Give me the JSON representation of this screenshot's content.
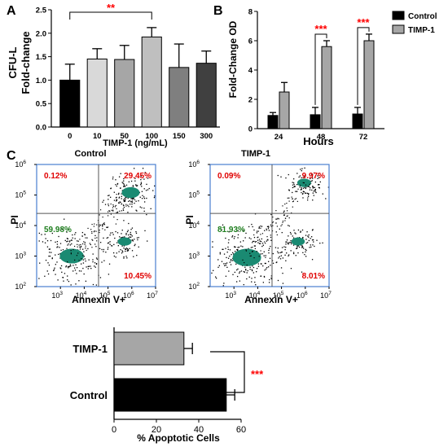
{
  "figure": {
    "panel_letters": [
      "A",
      "B",
      "C"
    ]
  },
  "chart_data": [
    {
      "panel": "A",
      "type": "bar",
      "xlabel": "TIMP-1 (ng/mL)",
      "ylabel_lines": [
        "CFU-L",
        "Fold-change"
      ],
      "categories": [
        "0",
        "10",
        "50",
        "100",
        "150",
        "300"
      ],
      "values": [
        1.0,
        1.45,
        1.44,
        1.92,
        1.27,
        1.36
      ],
      "errors": [
        0.34,
        0.22,
        0.3,
        0.2,
        0.5,
        0.26
      ],
      "colors": [
        "#000000",
        "#d9d9d9",
        "#a6a6a6",
        "#bfbfbf",
        "#7f7f7f",
        "#404040"
      ],
      "ylim": [
        0,
        2.5
      ],
      "yticks": [
        "0.0",
        "0.5",
        "1.0",
        "1.5",
        "2.0",
        "2.5"
      ],
      "annotations": [
        {
          "text": "**",
          "from": "0",
          "to": "100",
          "color": "#ff0000"
        }
      ]
    },
    {
      "panel": "B",
      "type": "bar",
      "xlabel": "Hours",
      "ylabel": "Fold-Change OD",
      "categories": [
        "24",
        "48",
        "72"
      ],
      "ylim": [
        0,
        8
      ],
      "yticks": [
        "0",
        "2",
        "4",
        "6",
        "8"
      ],
      "legend": {
        "position": "top-right"
      },
      "series": [
        {
          "name": "Control",
          "color": "#000000",
          "values": [
            0.9,
            0.95,
            1.0
          ],
          "errors": [
            0.2,
            0.5,
            0.45
          ]
        },
        {
          "name": "TIMP-1",
          "color": "#a6a6a6",
          "values": [
            2.5,
            5.6,
            6.0
          ],
          "errors": [
            0.65,
            0.4,
            0.45
          ]
        }
      ],
      "annotations": [
        {
          "text": "***",
          "category": "48",
          "color": "#ff0000"
        },
        {
          "text": "***",
          "category": "72",
          "color": "#ff0000"
        }
      ]
    },
    {
      "panel": "C-control",
      "type": "scatter",
      "title": "Control",
      "xlabel": "Annexin V+",
      "ylabel": "PI",
      "x_scale": "log",
      "y_scale": "log",
      "xlim": [
        100,
        10000000
      ],
      "ylim": [
        100,
        1000000
      ],
      "gate_x": 40000,
      "gate_y": 25000,
      "quadrants": {
        "upper_left": "0.12%",
        "upper_right": "29.45%",
        "lower_left": "59.98%",
        "lower_right": "10.45%"
      },
      "populations": [
        {
          "x": 3000,
          "y": 1000,
          "level": 0.6
        },
        {
          "x": 900000,
          "y": 120000,
          "level": 0.3
        },
        {
          "x": 500000,
          "y": 3000,
          "level": 0.1
        }
      ]
    },
    {
      "panel": "C-timp1",
      "type": "scatter",
      "title": "TIMP-1",
      "xlabel": "Annexin V+",
      "ylabel": "PI",
      "x_scale": "log",
      "y_scale": "log",
      "xlim": [
        100,
        10000000
      ],
      "ylim": [
        100,
        1000000
      ],
      "gate_x": 40000,
      "gate_y": 25000,
      "quadrants": {
        "upper_left": "0.09%",
        "upper_right": "9.97%",
        "lower_left": "81.93%",
        "lower_right": "8.01%"
      },
      "populations": [
        {
          "x": 3500,
          "y": 900,
          "level": 0.82
        },
        {
          "x": 900000,
          "y": 250000,
          "level": 0.1
        },
        {
          "x": 500000,
          "y": 3000,
          "level": 0.08
        }
      ]
    },
    {
      "panel": "C-bar",
      "type": "bar",
      "orientation": "horizontal",
      "xlabel": "% Apoptotic Cells",
      "categories": [
        "TIMP-1",
        "Control"
      ],
      "values": [
        33,
        53
      ],
      "errors": [
        4,
        4
      ],
      "colors": [
        "#a6a6a6",
        "#000000"
      ],
      "xlim": [
        0,
        60
      ],
      "xticks": [
        "0",
        "20",
        "40",
        "60"
      ],
      "annotations": [
        {
          "text": "***",
          "color": "#ff0000"
        }
      ]
    }
  ]
}
